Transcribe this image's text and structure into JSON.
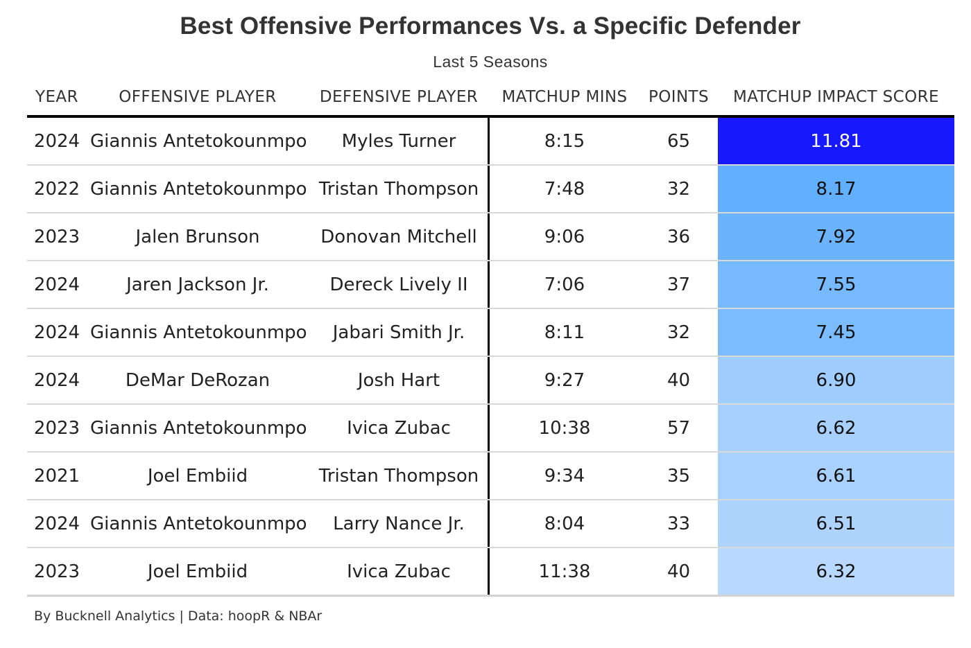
{
  "chart_data": {
    "type": "table",
    "title": "Best Offensive Performances Vs. a Specific Defender",
    "subtitle": "Last 5 Seasons",
    "columns": [
      "YEAR",
      "OFFENSIVE PLAYER",
      "DEFENSIVE PLAYER",
      "MATCHUP MINS",
      "POINTS",
      "MATCHUP IMPACT SCORE"
    ],
    "rows": [
      {
        "year": "2024",
        "offensive_player": "Giannis Antetokounmpo",
        "defensive_player": "Myles Turner",
        "matchup_mins": "8:15",
        "points": 65,
        "score": "11.81"
      },
      {
        "year": "2022",
        "offensive_player": "Giannis Antetokounmpo",
        "defensive_player": "Tristan Thompson",
        "matchup_mins": "7:48",
        "points": 32,
        "score": "8.17"
      },
      {
        "year": "2023",
        "offensive_player": "Jalen Brunson",
        "defensive_player": "Donovan Mitchell",
        "matchup_mins": "9:06",
        "points": 36,
        "score": "7.92"
      },
      {
        "year": "2024",
        "offensive_player": "Jaren Jackson Jr.",
        "defensive_player": "Dereck Lively II",
        "matchup_mins": "7:06",
        "points": 37,
        "score": "7.55"
      },
      {
        "year": "2024",
        "offensive_player": "Giannis Antetokounmpo",
        "defensive_player": "Jabari Smith Jr.",
        "matchup_mins": "8:11",
        "points": 32,
        "score": "7.45"
      },
      {
        "year": "2024",
        "offensive_player": "DeMar DeRozan",
        "defensive_player": "Josh Hart",
        "matchup_mins": "9:27",
        "points": 40,
        "score": "6.90"
      },
      {
        "year": "2023",
        "offensive_player": "Giannis Antetokounmpo",
        "defensive_player": "Ivica Zubac",
        "matchup_mins": "10:38",
        "points": 57,
        "score": "6.62"
      },
      {
        "year": "2021",
        "offensive_player": "Joel Embiid",
        "defensive_player": "Tristan Thompson",
        "matchup_mins": "9:34",
        "points": 35,
        "score": "6.61"
      },
      {
        "year": "2024",
        "offensive_player": "Giannis Antetokounmpo",
        "defensive_player": "Larry Nance Jr.",
        "matchup_mins": "8:04",
        "points": 33,
        "score": "6.51"
      },
      {
        "year": "2023",
        "offensive_player": "Joel Embiid",
        "defensive_player": "Ivica Zubac",
        "matchup_mins": "11:38",
        "points": 40,
        "score": "6.32"
      }
    ],
    "score_colors": [
      "#1818fc",
      "#62b0fd",
      "#6bb4fd",
      "#76b9fd",
      "#7abcfd",
      "#9fcdfd",
      "#a7d0fd",
      "#a9d1fd",
      "#aed4fd",
      "#b8d9fd"
    ],
    "score_text_colors": [
      "#ffffff",
      "#111111",
      "#111111",
      "#111111",
      "#111111",
      "#111111",
      "#111111",
      "#111111",
      "#111111",
      "#111111"
    ]
  },
  "footer": "By Bucknell Analytics | Data: hoopR & NBAr"
}
